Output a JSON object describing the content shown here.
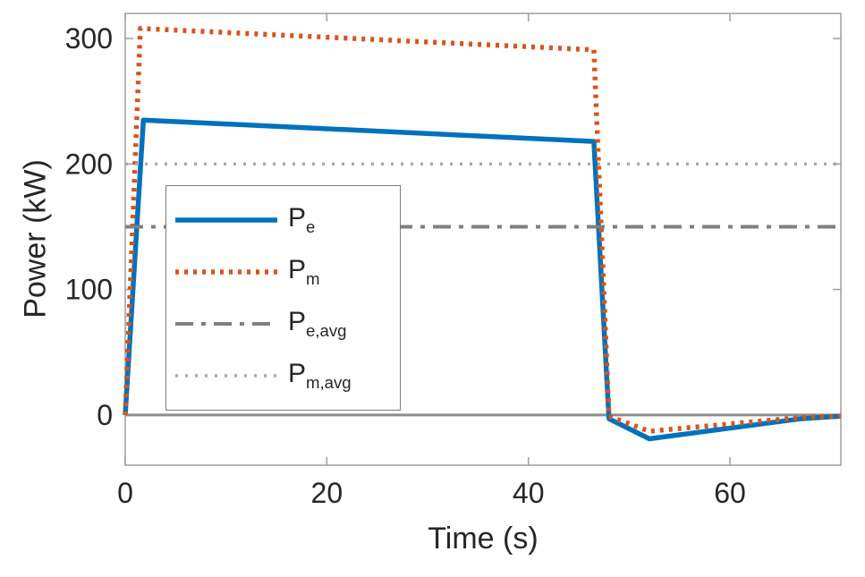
{
  "chart_data": {
    "type": "line",
    "title": "",
    "xlabel": "Time (s)",
    "ylabel": "Power (kW)",
    "xlim": [
      0,
      71
    ],
    "ylim": [
      -40,
      320
    ],
    "xticks": [
      0,
      20,
      40,
      60
    ],
    "yticks": [
      0,
      100,
      200,
      300
    ],
    "grid": false,
    "legend_position": "upper-left-inside",
    "axis_color": "#9E9E9E",
    "tick_label_color": "#262626",
    "series": [
      {
        "id": "zero-line",
        "color": "#8C8C8C",
        "dash": "solid",
        "width": 3,
        "points": [
          [
            0,
            0
          ],
          [
            71,
            0
          ]
        ]
      },
      {
        "id": "pe",
        "legend_main": "P",
        "legend_sub": "e",
        "color": "#0072BD",
        "dash": "solid",
        "width": 5.5,
        "points": [
          [
            0,
            0
          ],
          [
            1.8,
            235
          ],
          [
            46.5,
            218
          ],
          [
            48,
            -3
          ],
          [
            52,
            -19
          ],
          [
            67,
            -3
          ],
          [
            71,
            -1
          ]
        ]
      },
      {
        "id": "pm",
        "legend_main": "P",
        "legend_sub": "m",
        "color": "#D95319",
        "dash": "dotted",
        "width": 5.5,
        "points": [
          [
            0,
            0
          ],
          [
            1.5,
            308
          ],
          [
            46.5,
            291
          ],
          [
            48,
            -1
          ],
          [
            52,
            -13
          ],
          [
            67,
            -2
          ],
          [
            71,
            -1
          ]
        ]
      },
      {
        "id": "pe-avg",
        "legend_main": "P",
        "legend_sub": "e,avg",
        "color": "#7F7F7F",
        "dash": "dashdot",
        "width": 4,
        "points": [
          [
            0,
            150
          ],
          [
            71,
            150
          ]
        ]
      },
      {
        "id": "pm-avg",
        "legend_main": "P",
        "legend_sub": "m,avg",
        "color": "#A8A8A8",
        "dash": "dot-fine",
        "width": 3.5,
        "points": [
          [
            0,
            200
          ],
          [
            71,
            200
          ]
        ]
      }
    ]
  }
}
